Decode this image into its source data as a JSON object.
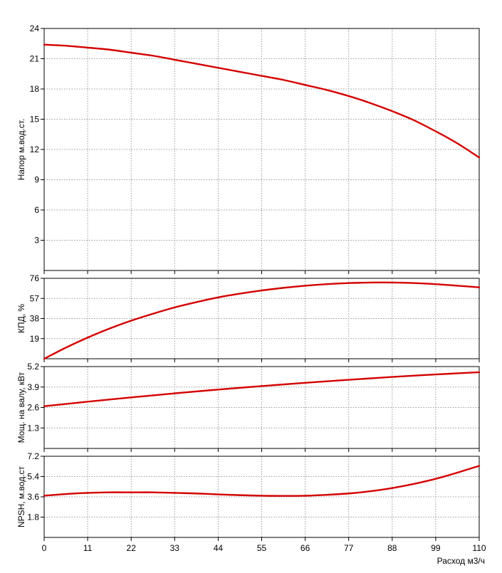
{
  "colors": {
    "curve": "#d40000",
    "grid": "#9a9a9a",
    "frame": "#000000"
  },
  "chart_data": [
    {
      "type": "line",
      "ylabel": "Напор м.вод.ст.",
      "xlabel": "",
      "ylim": [
        0,
        24
      ],
      "yticks": [
        3,
        6,
        9,
        12,
        15,
        18,
        21,
        24
      ],
      "xlim": [
        0,
        110
      ],
      "xticks": [
        0,
        11,
        22,
        33,
        44,
        55,
        66,
        77,
        88,
        99,
        110
      ],
      "grid": true,
      "series": [
        {
          "x": [
            0,
            5,
            11,
            16.5,
            22,
            27.5,
            33,
            38.5,
            44,
            49.5,
            55,
            60.5,
            66,
            71.5,
            77,
            82.5,
            88,
            93.5,
            99,
            104.5,
            110
          ],
          "y": [
            22.4,
            22.3,
            22.1,
            21.9,
            21.6,
            21.3,
            20.9,
            20.5,
            20.1,
            19.7,
            19.3,
            18.9,
            18.4,
            17.9,
            17.3,
            16.6,
            15.8,
            14.9,
            13.8,
            12.6,
            11.2
          ]
        }
      ]
    },
    {
      "type": "line",
      "ylabel": "КПД, %",
      "xlabel": "",
      "ylim": [
        0,
        76
      ],
      "yticks": [
        19,
        38,
        57,
        76
      ],
      "xlim": [
        0,
        110
      ],
      "xticks": [
        0,
        11,
        22,
        33,
        44,
        55,
        66,
        77,
        88,
        99,
        110
      ],
      "grid": true,
      "series": [
        {
          "x": [
            0,
            5.5,
            11,
            16.5,
            22,
            27.5,
            33,
            38.5,
            44,
            49.5,
            55,
            60.5,
            66,
            71.5,
            77,
            82.5,
            88,
            93.5,
            99,
            104.5,
            110
          ],
          "y": [
            0,
            10.5,
            20,
            28.5,
            36,
            42.5,
            48.5,
            53.5,
            58,
            61.5,
            64.5,
            67,
            69,
            70.5,
            71.5,
            72,
            72,
            71.5,
            70.5,
            69,
            67.5
          ]
        }
      ]
    },
    {
      "type": "line",
      "ylabel": "Мощ. на валу, кВт",
      "xlabel": "",
      "ylim": [
        0,
        5.2
      ],
      "yticks": [
        1.3,
        2.6,
        3.9,
        5.2
      ],
      "xlim": [
        0,
        110
      ],
      "xticks": [
        0,
        11,
        22,
        33,
        44,
        55,
        66,
        77,
        88,
        99,
        110
      ],
      "grid": true,
      "series": [
        {
          "x": [
            0,
            11,
            22,
            33,
            44,
            55,
            66,
            77,
            88,
            99,
            110
          ],
          "y": [
            2.68,
            2.97,
            3.24,
            3.5,
            3.74,
            3.96,
            4.17,
            4.36,
            4.54,
            4.7,
            4.84
          ]
        }
      ]
    },
    {
      "type": "line",
      "ylabel": "NPSH, м.вод.ст",
      "xlabel": "Расход м3/ч",
      "ylim": [
        0,
        7.2
      ],
      "yticks": [
        1.8,
        3.6,
        5.4,
        7.2
      ],
      "xlim": [
        0,
        110
      ],
      "xticks": [
        0,
        11,
        22,
        33,
        44,
        55,
        66,
        77,
        88,
        99,
        110
      ],
      "xticklabels": [
        "0",
        "11",
        "22",
        "33",
        "44",
        "55",
        "66",
        "77",
        "88",
        "99",
        "110"
      ],
      "grid": true,
      "series": [
        {
          "x": [
            0,
            5.5,
            11,
            16.5,
            22,
            27.5,
            33,
            38.5,
            44,
            49.5,
            55,
            60.5,
            66,
            71.5,
            77,
            82.5,
            88,
            93.5,
            99,
            104.5,
            110
          ],
          "y": [
            3.7,
            3.85,
            3.95,
            4.0,
            4.0,
            4.0,
            3.95,
            3.9,
            3.82,
            3.75,
            3.7,
            3.68,
            3.7,
            3.78,
            3.9,
            4.1,
            4.38,
            4.75,
            5.2,
            5.75,
            6.35
          ]
        }
      ]
    }
  ]
}
